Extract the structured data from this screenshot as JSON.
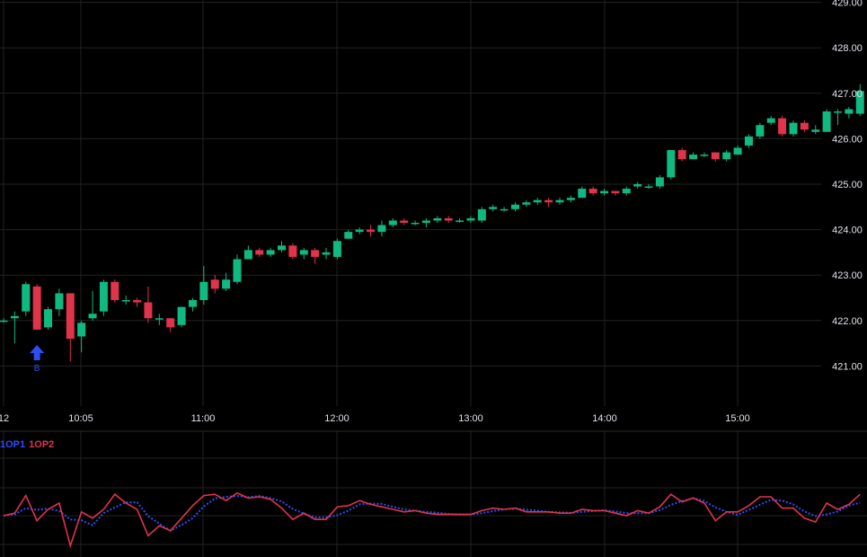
{
  "chart_data": [
    {
      "type": "candlestick",
      "ylim": [
        420.4,
        429.4
      ],
      "y_ticks": [
        "421.00",
        "422.00",
        "423.00",
        "424.00",
        "425.00",
        "426.00",
        "427.00",
        "428.00",
        "429.00"
      ],
      "x_ticks": [
        "12",
        "10:05",
        "11:00",
        "12:00",
        "13:00",
        "14:00",
        "15:00"
      ],
      "grid": true,
      "colors": {
        "up": "#10b981",
        "down": "#e0344a",
        "grid": "#222222",
        "marker": "#2f4df5"
      },
      "candles": [
        [
          422.0,
          422.0,
          421.95,
          422.05
        ],
        [
          422.05,
          422.1,
          421.5,
          422.2
        ],
        [
          422.2,
          422.8,
          422.1,
          422.85
        ],
        [
          422.75,
          421.8,
          421.8,
          422.8
        ],
        [
          421.85,
          422.25,
          421.8,
          422.3
        ],
        [
          422.25,
          422.6,
          422.1,
          422.7
        ],
        [
          422.6,
          421.6,
          421.1,
          422.6
        ],
        [
          421.65,
          421.95,
          421.3,
          422.0
        ],
        [
          422.05,
          422.15,
          422.0,
          422.65
        ],
        [
          422.2,
          422.85,
          422.1,
          422.9
        ],
        [
          422.85,
          422.45,
          422.4,
          422.9
        ],
        [
          422.45,
          422.45,
          422.35,
          422.55
        ],
        [
          422.45,
          422.4,
          422.3,
          422.5
        ],
        [
          422.4,
          422.05,
          421.95,
          422.75
        ],
        [
          422.05,
          422.05,
          421.9,
          422.15
        ],
        [
          422.05,
          421.85,
          421.75,
          422.05
        ],
        [
          421.9,
          422.3,
          421.85,
          422.3
        ],
        [
          422.3,
          422.45,
          422.2,
          422.5
        ],
        [
          422.45,
          422.85,
          422.35,
          423.2
        ],
        [
          422.9,
          422.7,
          422.6,
          423.0
        ],
        [
          422.7,
          422.9,
          422.65,
          423.05
        ],
        [
          422.85,
          423.35,
          422.8,
          423.45
        ],
        [
          423.35,
          423.55,
          423.35,
          423.65
        ],
        [
          423.55,
          423.45,
          423.4,
          423.6
        ],
        [
          423.45,
          423.55,
          423.4,
          423.6
        ],
        [
          423.55,
          423.65,
          423.5,
          423.75
        ],
        [
          423.65,
          423.4,
          423.35,
          423.7
        ],
        [
          423.45,
          423.55,
          423.35,
          423.6
        ],
        [
          423.55,
          423.4,
          423.25,
          423.6
        ],
        [
          423.45,
          423.5,
          423.35,
          423.6
        ],
        [
          423.4,
          423.75,
          423.35,
          423.8
        ],
        [
          423.8,
          423.95,
          423.8,
          424.0
        ],
        [
          423.95,
          424.0,
          423.9,
          424.05
        ],
        [
          424.0,
          423.95,
          423.85,
          424.1
        ],
        [
          423.95,
          424.1,
          423.85,
          424.2
        ],
        [
          424.1,
          424.2,
          424.05,
          424.25
        ],
        [
          424.2,
          424.15,
          424.1,
          424.25
        ],
        [
          424.15,
          424.15,
          424.1,
          424.2
        ],
        [
          424.15,
          424.2,
          424.05,
          424.25
        ],
        [
          424.2,
          424.25,
          424.15,
          424.3
        ],
        [
          424.25,
          424.2,
          424.15,
          424.3
        ],
        [
          424.2,
          424.2,
          424.15,
          424.25
        ],
        [
          424.2,
          424.25,
          424.15,
          424.3
        ],
        [
          424.2,
          424.45,
          424.15,
          424.5
        ],
        [
          424.45,
          424.5,
          424.4,
          424.55
        ],
        [
          424.45,
          424.45,
          424.4,
          424.5
        ],
        [
          424.45,
          424.55,
          424.4,
          424.6
        ],
        [
          424.55,
          424.6,
          424.5,
          424.65
        ],
        [
          424.6,
          424.65,
          424.55,
          424.7
        ],
        [
          424.65,
          424.6,
          424.5,
          424.7
        ],
        [
          424.6,
          424.65,
          424.55,
          424.7
        ],
        [
          424.65,
          424.7,
          424.6,
          424.75
        ],
        [
          424.7,
          424.9,
          424.7,
          424.95
        ],
        [
          424.9,
          424.8,
          424.75,
          424.95
        ],
        [
          424.8,
          424.85,
          424.75,
          424.9
        ],
        [
          424.85,
          424.8,
          424.75,
          424.85
        ],
        [
          424.8,
          424.9,
          424.75,
          424.95
        ],
        [
          424.95,
          425.0,
          424.9,
          425.05
        ],
        [
          424.95,
          424.95,
          424.9,
          425.0
        ],
        [
          424.95,
          425.15,
          424.9,
          425.2
        ],
        [
          425.15,
          425.75,
          425.1,
          425.75
        ],
        [
          425.75,
          425.55,
          425.5,
          425.8
        ],
        [
          425.55,
          425.65,
          425.55,
          425.7
        ],
        [
          425.65,
          425.65,
          425.6,
          425.7
        ],
        [
          425.7,
          425.55,
          425.5,
          425.7
        ],
        [
          425.55,
          425.7,
          425.5,
          425.75
        ],
        [
          425.65,
          425.8,
          425.65,
          425.85
        ],
        [
          425.85,
          426.05,
          425.8,
          426.1
        ],
        [
          426.05,
          426.3,
          426.0,
          426.35
        ],
        [
          426.35,
          426.45,
          426.3,
          426.5
        ],
        [
          426.45,
          426.1,
          426.05,
          426.5
        ],
        [
          426.1,
          426.35,
          426.05,
          426.4
        ],
        [
          426.35,
          426.2,
          426.15,
          426.4
        ],
        [
          426.15,
          426.2,
          426.1,
          426.3
        ],
        [
          426.15,
          426.6,
          426.15,
          426.65
        ],
        [
          426.6,
          426.6,
          426.3,
          426.65
        ],
        [
          426.55,
          426.65,
          426.45,
          426.7
        ],
        [
          426.55,
          427.05,
          426.5,
          427.2
        ]
      ]
    },
    {
      "type": "line",
      "series": [
        {
          "name": "1OP1",
          "color": "#2f4df5"
        },
        {
          "name": "1OP2",
          "color": "#e0344a"
        }
      ]
    }
  ],
  "marker": {
    "label": "B"
  }
}
